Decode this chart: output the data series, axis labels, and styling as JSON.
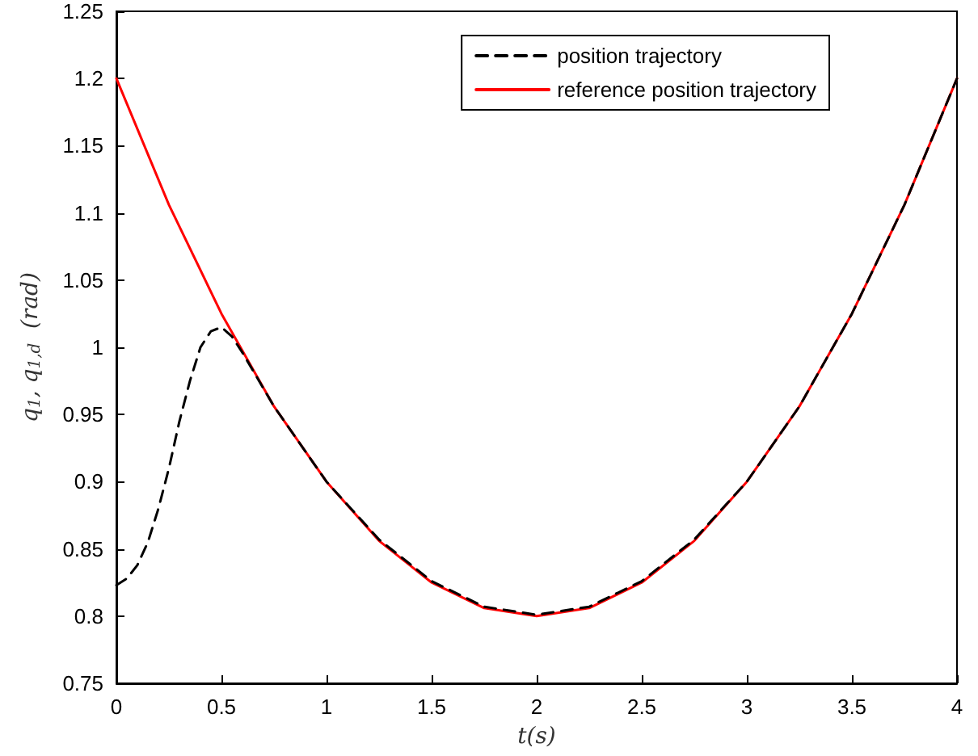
{
  "chart_data": {
    "type": "line",
    "xlabel": "t(s)",
    "ylabel": "q$_{1}$, q$_{1,d}$  (rad)",
    "xlim": [
      0,
      4
    ],
    "xticks": [
      0,
      0.5,
      1,
      1.5,
      2,
      2.5,
      3,
      3.5,
      4
    ],
    "ylim": [
      0.75,
      1.25
    ],
    "yticks": [
      0.75,
      0.8,
      0.85,
      0.9,
      0.95,
      1,
      1.05,
      1.1,
      1.15,
      1.2,
      1.25
    ],
    "grid": false,
    "legend": "top right",
    "marker": "none",
    "series": [
      {
        "name": "position trajectory",
        "color": "#000000",
        "line_style": "dashed",
        "x": [
          0,
          0.05,
          0.1,
          0.15,
          0.2,
          0.25,
          0.3,
          0.35,
          0.4,
          0.45,
          0.5,
          0.55,
          0.6,
          0.75,
          1,
          1.25,
          1.5,
          1.75,
          2,
          2.25,
          2.5,
          2.75,
          3,
          3.25,
          3.5,
          3.75,
          4
        ],
        "values": [
          0.823,
          0.828,
          0.838,
          0.855,
          0.88,
          0.91,
          0.945,
          0.975,
          1.0,
          1.012,
          1.015,
          1.008,
          0.996,
          0.956,
          0.9,
          0.857,
          0.826,
          0.807,
          0.801,
          0.807,
          0.826,
          0.857,
          0.9,
          0.956,
          1.025,
          1.106,
          1.2
        ]
      },
      {
        "name": "reference position trajectory",
        "color": "#ff0000",
        "line_style": "solid",
        "x": [
          0,
          0.25,
          0.5,
          0.75,
          1,
          1.25,
          1.5,
          1.75,
          2,
          2.25,
          2.5,
          2.75,
          3,
          3.25,
          3.5,
          3.75,
          4
        ],
        "values": [
          1.2,
          1.106,
          1.025,
          0.956,
          0.9,
          0.856,
          0.825,
          0.806,
          0.8,
          0.806,
          0.825,
          0.856,
          0.9,
          0.956,
          1.025,
          1.106,
          1.2
        ]
      }
    ]
  }
}
